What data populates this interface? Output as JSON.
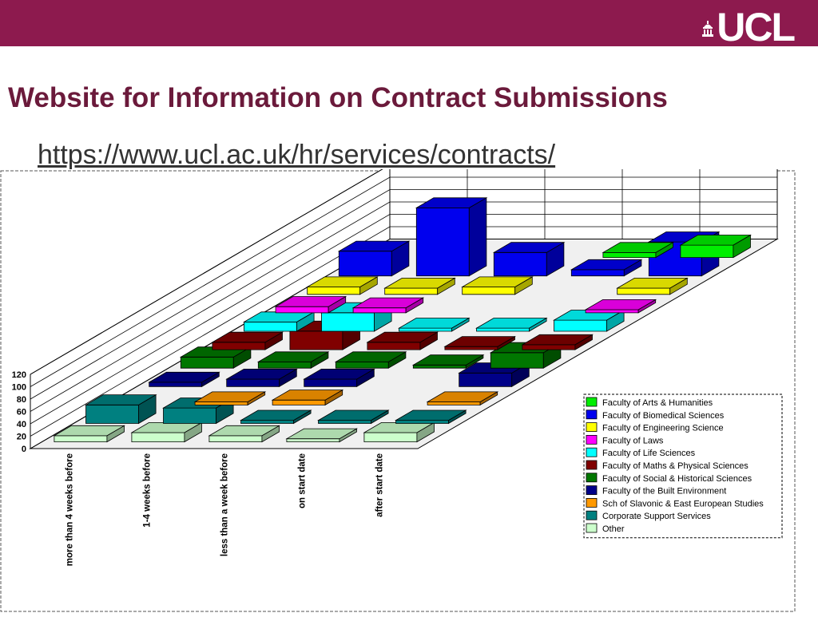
{
  "header": {
    "logo_text": "UCL",
    "title": "Website for Information on Contract Submissions",
    "link": "https://www.ucl.ac.uk/hr/services/contracts/"
  },
  "colors": {
    "brand_bar": "#8d1a4e",
    "title": "#6b1a3b"
  },
  "chart_data": {
    "type": "bar",
    "subtype": "3d-grouped",
    "title": "",
    "xlabel": "",
    "ylabel": "",
    "ylim": [
      0,
      120
    ],
    "yticks": [
      0,
      20,
      40,
      60,
      80,
      100,
      120
    ],
    "grid": true,
    "legend_position": "right",
    "categories": [
      "more than 4 weeks before",
      "1-4 weeks before",
      "less than a week before",
      "on start date",
      "after start date"
    ],
    "series": [
      {
        "name": "Faculty of Arts & Humanities",
        "color": "#00ee00",
        "values": [
          0,
          0,
          0,
          8,
          20
        ]
      },
      {
        "name": "Faculty of Biomedical Sciences",
        "color": "#0000ee",
        "values": [
          40,
          110,
          38,
          10,
          55
        ]
      },
      {
        "name": "Faculty of Engineering Science",
        "color": "#ffff00",
        "values": [
          12,
          10,
          12,
          0,
          10
        ]
      },
      {
        "name": "Faculty of Laws",
        "color": "#ff00ff",
        "values": [
          10,
          8,
          0,
          0,
          5
        ]
      },
      {
        "name": "Faculty of Life Sciences",
        "color": "#00ffff",
        "values": [
          15,
          30,
          5,
          5,
          18
        ]
      },
      {
        "name": "Faculty of Maths & Physical Sciences",
        "color": "#800000",
        "values": [
          12,
          30,
          12,
          5,
          8
        ]
      },
      {
        "name": "Faculty of Social & Historical Sciences",
        "color": "#007700",
        "values": [
          18,
          10,
          10,
          5,
          25
        ]
      },
      {
        "name": "Faculty of the Built Environment",
        "color": "#000088",
        "values": [
          7,
          12,
          12,
          0,
          22
        ]
      },
      {
        "name": "Sch of Slavonic & East European Studies",
        "color": "#ff9900",
        "values": [
          0,
          5,
          8,
          0,
          5
        ]
      },
      {
        "name": "Corporate Support Services",
        "color": "#008080",
        "values": [
          30,
          25,
          5,
          5,
          5
        ]
      },
      {
        "name": "Other",
        "color": "#ccffcc",
        "values": [
          10,
          15,
          10,
          5,
          15
        ]
      }
    ]
  }
}
